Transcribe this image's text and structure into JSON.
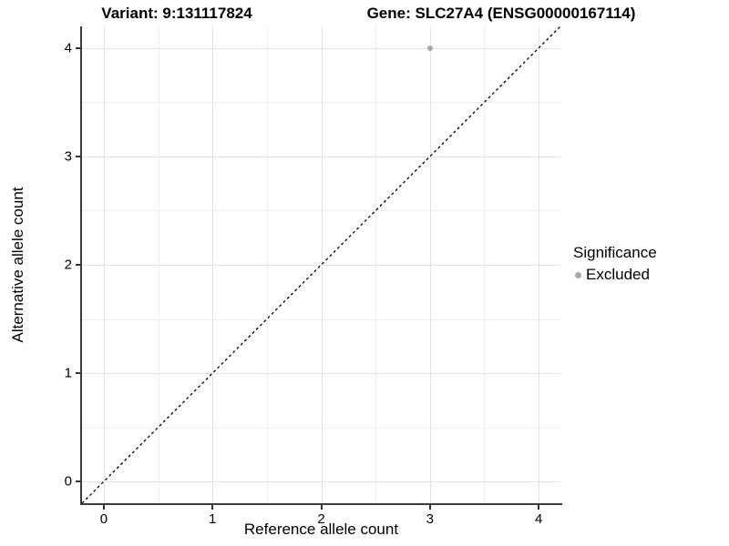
{
  "header": {
    "variant_title": "Variant: 9:131117824",
    "gene_title": "Gene: SLC27A4 (ENSG00000167114)"
  },
  "chart_data": {
    "type": "scatter",
    "title_left": "Variant: 9:131117824",
    "title_right": "Gene: SLC27A4 (ENSG00000167114)",
    "xlabel": "Reference allele count",
    "ylabel": "Alternative allele count",
    "xlim": [
      -0.2,
      4.2
    ],
    "ylim": [
      -0.2,
      4.2
    ],
    "x_major_ticks": [
      0,
      1,
      2,
      3,
      4
    ],
    "y_major_ticks": [
      0,
      1,
      2,
      3,
      4
    ],
    "x_minor_ticks": [
      0.5,
      1.5,
      2.5,
      3.5
    ],
    "y_minor_ticks": [
      0.5,
      1.5,
      2.5,
      3.5
    ],
    "grid": true,
    "points": [
      {
        "x": 3,
        "y": 4,
        "significance": "Excluded"
      }
    ],
    "identity_line": {
      "x1": -0.2,
      "y1": -0.2,
      "x2": 4.2,
      "y2": 4.2,
      "style": "dashed",
      "color": "#000000"
    },
    "legend": {
      "title": "Significance",
      "position": "right",
      "entries": [
        {
          "label": "Excluded",
          "color": "#a8a8a8"
        }
      ]
    },
    "colors": {
      "point": "#ababab",
      "grid_major": "#e3e3e3",
      "grid_minor": "#f0f0f0",
      "axis_line": "#3c3c3c",
      "background": "#ffffff"
    }
  }
}
